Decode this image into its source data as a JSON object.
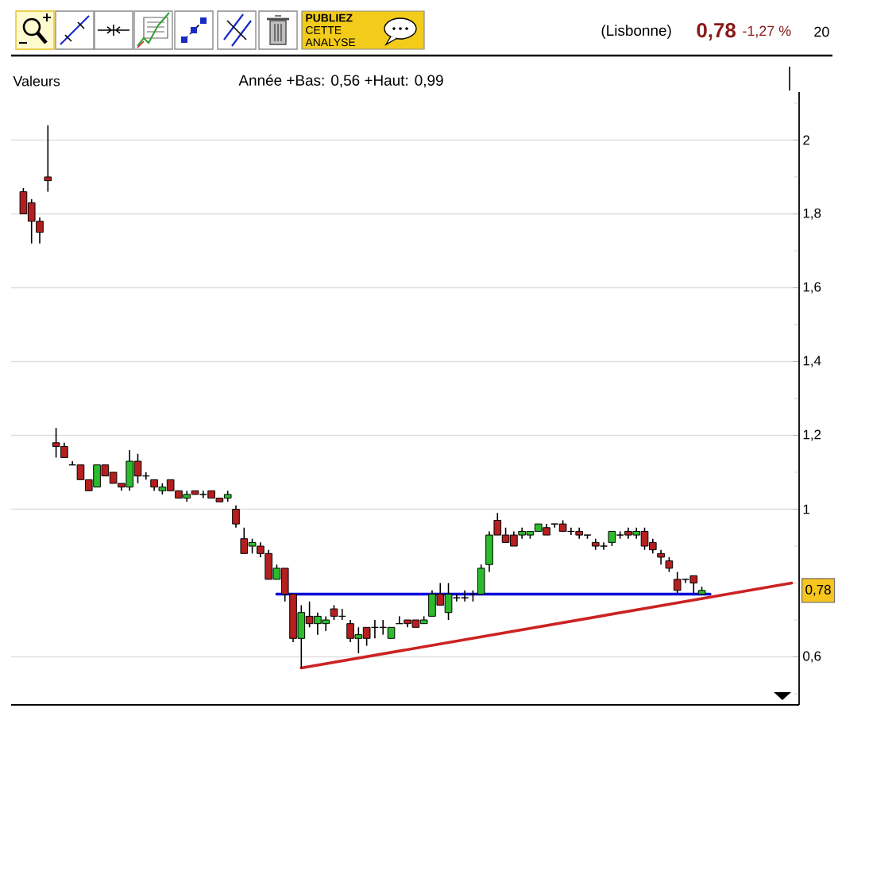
{
  "chart_data": {
    "type": "candlestick",
    "annotations": [
      "**PUBLIEZ** CETTE ANALYSE",
      "(Lisbonne)",
      "0,78",
      "-1,27 %",
      "20",
      "Valeurs",
      "Année +Bas: 0,56 +Haut: 0,99",
      "0,78"
    ],
    "categories": [
      null,
      null,
      null,
      null,
      null,
      null,
      null,
      null,
      null,
      null,
      null,
      null,
      null,
      null,
      null,
      null,
      null,
      null,
      null,
      null,
      null,
      null,
      null,
      null,
      null,
      null,
      null,
      null,
      null,
      null,
      null,
      null,
      null,
      null,
      null,
      null,
      null,
      null,
      null,
      null,
      null,
      null,
      null,
      null,
      null,
      null,
      null,
      null,
      null,
      null,
      null,
      null,
      null,
      null,
      null,
      null,
      null,
      null,
      null,
      null,
      null,
      null,
      null,
      null,
      null,
      null,
      null,
      null,
      null,
      null,
      null,
      null,
      null,
      null,
      null,
      null,
      null,
      null,
      null,
      null,
      null,
      null,
      null,
      null,
      null,
      null,
      null,
      null,
      null,
      null,
      null,
      null,
      null,
      null,
      null
    ],
    "ohlc": [
      [
        1.86,
        1.87,
        1.8,
        1.8
      ],
      [
        1.83,
        1.84,
        1.72,
        1.78
      ],
      [
        1.78,
        1.79,
        1.72,
        1.75
      ],
      [
        1.9,
        2.04,
        1.86,
        1.89
      ],
      [
        1.18,
        1.22,
        1.14,
        1.17
      ],
      [
        1.17,
        1.18,
        1.14,
        1.14
      ],
      [
        1.12,
        1.13,
        1.12,
        1.12
      ],
      [
        1.12,
        1.12,
        1.08,
        1.08
      ],
      [
        1.08,
        1.08,
        1.05,
        1.05
      ],
      [
        1.06,
        1.12,
        1.06,
        1.12
      ],
      [
        1.12,
        1.12,
        1.09,
        1.09
      ],
      [
        1.1,
        1.1,
        1.07,
        1.07
      ],
      [
        1.07,
        1.07,
        1.05,
        1.06
      ],
      [
        1.06,
        1.16,
        1.05,
        1.13
      ],
      [
        1.13,
        1.15,
        1.07,
        1.09
      ],
      [
        1.09,
        1.1,
        1.08,
        1.09
      ],
      [
        1.08,
        1.08,
        1.05,
        1.06
      ],
      [
        1.05,
        1.07,
        1.04,
        1.06
      ],
      [
        1.08,
        1.08,
        1.05,
        1.05
      ],
      [
        1.05,
        1.05,
        1.03,
        1.03
      ],
      [
        1.03,
        1.05,
        1.02,
        1.04
      ],
      [
        1.05,
        1.05,
        1.04,
        1.04
      ],
      [
        1.04,
        1.05,
        1.03,
        1.04
      ],
      [
        1.05,
        1.05,
        1.03,
        1.03
      ],
      [
        1.03,
        1.03,
        1.02,
        1.02
      ],
      [
        1.03,
        1.05,
        1.02,
        1.04
      ],
      [
        1.0,
        1.01,
        0.95,
        0.96
      ],
      [
        0.92,
        0.95,
        0.88,
        0.88
      ],
      [
        0.9,
        0.92,
        0.88,
        0.91
      ],
      [
        0.9,
        0.91,
        0.87,
        0.88
      ],
      [
        0.88,
        0.89,
        0.81,
        0.81
      ],
      [
        0.81,
        0.85,
        0.81,
        0.84
      ],
      [
        0.84,
        0.84,
        0.75,
        0.77
      ],
      [
        0.77,
        0.77,
        0.64,
        0.65
      ],
      [
        0.65,
        0.74,
        0.57,
        0.72
      ],
      [
        0.71,
        0.75,
        0.68,
        0.69
      ],
      [
        0.69,
        0.72,
        0.66,
        0.71
      ],
      [
        0.69,
        0.71,
        0.67,
        0.7
      ],
      [
        0.73,
        0.74,
        0.7,
        0.71
      ],
      [
        0.71,
        0.73,
        0.7,
        0.71
      ],
      [
        0.69,
        0.7,
        0.64,
        0.65
      ],
      [
        0.65,
        0.68,
        0.61,
        0.66
      ],
      [
        0.68,
        0.68,
        0.63,
        0.65
      ],
      [
        0.68,
        0.7,
        0.65,
        0.68
      ],
      [
        0.68,
        0.7,
        0.66,
        0.68
      ],
      [
        0.65,
        0.68,
        0.65,
        0.68
      ],
      [
        0.69,
        0.71,
        0.69,
        0.69
      ],
      [
        0.7,
        0.7,
        0.68,
        0.69
      ],
      [
        0.7,
        0.7,
        0.68,
        0.68
      ],
      [
        0.69,
        0.71,
        0.69,
        0.7
      ],
      [
        0.71,
        0.78,
        0.71,
        0.77
      ],
      [
        0.77,
        0.8,
        0.74,
        0.74
      ],
      [
        0.72,
        0.8,
        0.7,
        0.77
      ],
      [
        0.76,
        0.77,
        0.75,
        0.76
      ],
      [
        0.76,
        0.78,
        0.75,
        0.76
      ],
      [
        0.77,
        0.78,
        0.75,
        0.77
      ],
      [
        0.77,
        0.85,
        0.77,
        0.84
      ],
      [
        0.85,
        0.94,
        0.83,
        0.93
      ],
      [
        0.97,
        0.99,
        0.93,
        0.93
      ],
      [
        0.93,
        0.95,
        0.91,
        0.91
      ],
      [
        0.93,
        0.94,
        0.9,
        0.9
      ],
      [
        0.93,
        0.95,
        0.92,
        0.94
      ],
      [
        0.93,
        0.94,
        0.92,
        0.94
      ],
      [
        0.94,
        0.96,
        0.94,
        0.96
      ],
      [
        0.95,
        0.96,
        0.93,
        0.93
      ],
      [
        0.96,
        0.96,
        0.95,
        0.96
      ],
      [
        0.96,
        0.97,
        0.94,
        0.94
      ],
      [
        0.94,
        0.95,
        0.93,
        0.94
      ],
      [
        0.94,
        0.95,
        0.92,
        0.93
      ],
      [
        0.93,
        0.93,
        0.92,
        0.93
      ],
      [
        0.91,
        0.92,
        0.89,
        0.9
      ],
      [
        0.9,
        0.91,
        0.89,
        0.9
      ],
      [
        0.91,
        0.94,
        0.9,
        0.94
      ],
      [
        0.93,
        0.94,
        0.92,
        0.93
      ],
      [
        0.94,
        0.95,
        0.92,
        0.93
      ],
      [
        0.93,
        0.95,
        0.92,
        0.94
      ],
      [
        0.94,
        0.95,
        0.89,
        0.9
      ],
      [
        0.91,
        0.92,
        0.88,
        0.89
      ],
      [
        0.88,
        0.89,
        0.85,
        0.87
      ],
      [
        0.86,
        0.87,
        0.83,
        0.84
      ],
      [
        0.81,
        0.83,
        0.77,
        0.78
      ],
      [
        0.81,
        0.81,
        0.8,
        0.81
      ],
      [
        0.82,
        0.82,
        0.77,
        0.8
      ],
      [
        0.77,
        0.79,
        0.77,
        0.78
      ],
      null,
      null,
      null,
      null,
      null,
      null,
      null,
      null,
      null,
      null,
      null
    ],
    "colors": [
      "#b51f1f",
      "#b51f1f",
      "#b51f1f",
      "#b51f1f",
      "#b51f1f",
      "#b51f1f",
      "#000000",
      "#b51f1f",
      "#b51f1f",
      "#2dbb2d",
      "#b51f1f",
      "#b51f1f",
      "#b51f1f",
      "#2dbb2d",
      "#b51f1f",
      "#000000",
      "#b51f1f",
      "#2dbb2d",
      "#b51f1f",
      "#b51f1f",
      "#2dbb2d",
      "#b51f1f",
      "#000000",
      "#b51f1f",
      "#b51f1f",
      "#2dbb2d",
      "#b51f1f",
      "#b51f1f",
      "#2dbb2d",
      "#b51f1f",
      "#b51f1f",
      "#2dbb2d",
      "#b51f1f",
      "#b51f1f",
      "#2dbb2d",
      "#b51f1f",
      "#2dbb2d",
      "#2dbb2d",
      "#b51f1f",
      "#000000",
      "#b51f1f",
      "#2dbb2d",
      "#b51f1f",
      "#000000",
      "#000000",
      "#2dbb2d",
      "#000000",
      "#b51f1f",
      "#b51f1f",
      "#2dbb2d",
      "#2dbb2d",
      "#b51f1f",
      "#2dbb2d",
      "#000000",
      "#000000",
      "#000000",
      "#2dbb2d",
      "#2dbb2d",
      "#b51f1f",
      "#b51f1f",
      "#b51f1f",
      "#2dbb2d",
      "#2dbb2d",
      "#2dbb2d",
      "#b51f1f",
      "#000000",
      "#b51f1f",
      "#000000",
      "#b51f1f",
      "#000000",
      "#b51f1f",
      "#000000",
      "#2dbb2d",
      "#000000",
      "#b51f1f",
      "#2dbb2d",
      "#b51f1f",
      "#b51f1f",
      "#b51f1f",
      "#b51f1f",
      "#b51f1f",
      "#000000",
      "#b51f1f",
      "#2dbb2d",
      null,
      null,
      null,
      null,
      null,
      null,
      null,
      null,
      null,
      null,
      null
    ],
    "series": [
      {
        "type": "line",
        "color": "#cc2222",
        "values": [
          null,
          null,
          null,
          null,
          null,
          null,
          null,
          null,
          null,
          null,
          null,
          null,
          null,
          null,
          null,
          null,
          null,
          null,
          null,
          null,
          null,
          null,
          null,
          null,
          null,
          null,
          null,
          null,
          null,
          null,
          null,
          null,
          null,
          null,
          0.57,
          null,
          null,
          null,
          null,
          null,
          null,
          null,
          null,
          null,
          null,
          null,
          null,
          null,
          null,
          null,
          null,
          null,
          null,
          null,
          null,
          null,
          null,
          null,
          null,
          null,
          null,
          null,
          null,
          null,
          null,
          null,
          null,
          null,
          null,
          null,
          null,
          null,
          null,
          null,
          null,
          null,
          null,
          null,
          null,
          null,
          null,
          null,
          null,
          null,
          null,
          null,
          null,
          null,
          null,
          null,
          null,
          null,
          null,
          null,
          0.8
        ]
      },
      {
        "type": "line",
        "color": "#0000dd",
        "values": [
          null,
          null,
          null,
          null,
          null,
          null,
          null,
          null,
          null,
          null,
          null,
          null,
          null,
          null,
          null,
          null,
          null,
          null,
          null,
          null,
          null,
          null,
          null,
          null,
          null,
          null,
          null,
          null,
          null,
          null,
          null,
          0.77,
          null,
          null,
          null,
          null,
          null,
          null,
          null,
          null,
          null,
          null,
          null,
          null,
          null,
          null,
          null,
          null,
          null,
          null,
          null,
          null,
          null,
          null,
          null,
          null,
          null,
          null,
          null,
          null,
          null,
          null,
          null,
          null,
          null,
          null,
          null,
          null,
          null,
          null,
          null,
          null,
          null,
          null,
          null,
          null,
          null,
          null,
          null,
          null,
          null,
          null,
          null,
          null,
          0.77,
          null,
          null,
          null,
          null,
          null,
          null,
          null,
          null,
          null,
          null
        ]
      }
    ],
    "ylim": [
      0.47,
      2.13
    ],
    "yticks": [
      {
        "value": 0.5,
        "label": null
      },
      {
        "value": 0.6,
        "label": "0,6"
      },
      {
        "value": 0.7,
        "label": null
      },
      {
        "value": 0.8,
        "label": null
      },
      {
        "value": 0.9,
        "label": null
      },
      1,
      {
        "value": 1.1,
        "label": null
      },
      {
        "value": 1.2,
        "label": "1,2"
      },
      {
        "value": 1.3,
        "label": null
      },
      {
        "value": 1.4,
        "label": "1,4"
      },
      {
        "value": 1.5,
        "label": null
      },
      {
        "value": 1.6,
        "label": "1,6"
      },
      {
        "value": 1.7,
        "label": null
      },
      {
        "value": 1.8,
        "label": "1,8"
      },
      {
        "value": 1.9,
        "label": null
      },
      2,
      {
        "value": 2.1,
        "label": null
      }
    ],
    "grid": "y"
  }
}
